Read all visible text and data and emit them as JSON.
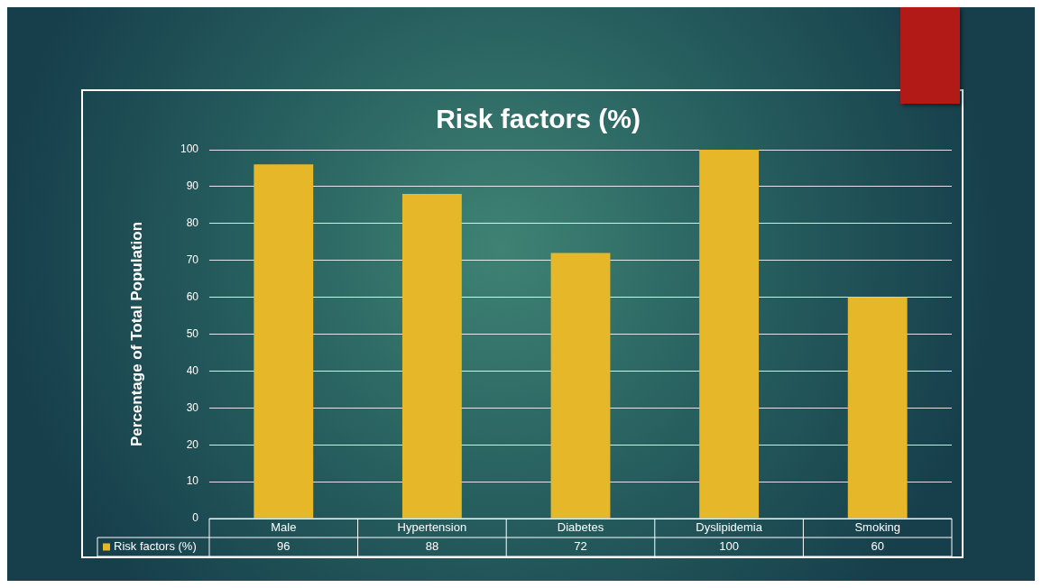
{
  "chart_data": {
    "type": "bar",
    "title": "Risk factors (%)",
    "ylabel": "Percentage of Total Population",
    "categories": [
      "Male",
      "Hypertension",
      "Diabetes",
      "Dyslipidemia",
      "Smoking"
    ],
    "series": [
      {
        "name": "Risk factors (%)",
        "color": "#e6b729",
        "values": [
          96,
          88,
          72,
          100,
          60
        ]
      }
    ],
    "ylim": [
      0,
      100
    ],
    "yticks": [
      0,
      10,
      20,
      30,
      40,
      50,
      60,
      70,
      80,
      90,
      100
    ],
    "grid": "y",
    "legend": "bottom",
    "data_labels": true
  }
}
